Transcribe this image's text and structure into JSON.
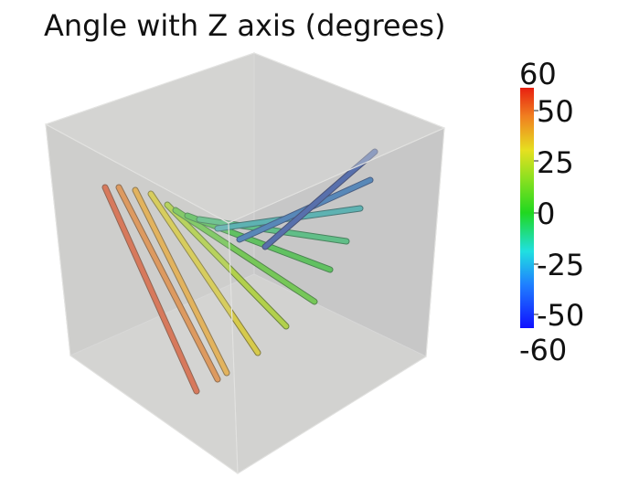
{
  "title": "Angle with Z axis (degrees)",
  "colorbar": {
    "min_label": "-60",
    "max_label": "60",
    "ticks": [
      "50",
      "25",
      "0",
      "-25",
      "-50"
    ]
  },
  "colors": {
    "background": "#ffffff",
    "box_back": "#bfbfbf",
    "box_front": "#d4d4d2",
    "colormap": [
      "#1a1aff",
      "#2fa8ff",
      "#38e6e6",
      "#30d830",
      "#b8e030",
      "#e8d020",
      "#f08a20",
      "#e83020"
    ]
  }
}
